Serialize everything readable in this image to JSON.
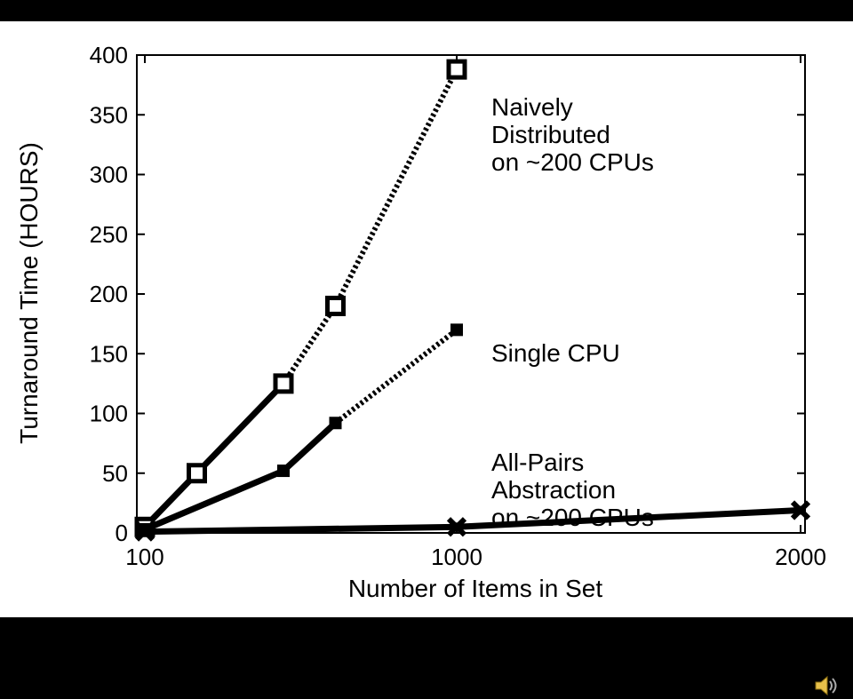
{
  "chart_data": {
    "type": "line",
    "xlabel": "Number of Items in Set",
    "ylabel": "Turnaround Time (HOURS)",
    "x_ticks": [
      "100",
      "1000",
      "2000"
    ],
    "y_ticks": [
      "0",
      "50",
      "100",
      "150",
      "200",
      "250",
      "300",
      "350",
      "400"
    ],
    "xlim": [
      100,
      2000
    ],
    "ylim": [
      0,
      400
    ],
    "grid": false,
    "series": [
      {
        "key": "naive",
        "label_lines": [
          "Naively",
          "Distributed",
          "on ~200 CPUs"
        ],
        "marker": "square-hollow",
        "points": [
          [
            100,
            5
          ],
          [
            250,
            50
          ],
          [
            500,
            125
          ],
          [
            650,
            190
          ],
          [
            1000,
            388
          ]
        ],
        "measured_until_x": 500
      },
      {
        "key": "single",
        "label_lines": [
          "Single CPU"
        ],
        "marker": "square-filled",
        "points": [
          [
            100,
            3
          ],
          [
            500,
            52
          ],
          [
            650,
            92
          ],
          [
            1000,
            170
          ]
        ],
        "measured_until_x": 650
      },
      {
        "key": "allpairs",
        "label_lines": [
          "All-Pairs",
          "Abstraction",
          "on ~200 CPUs"
        ],
        "marker": "x-filled",
        "points": [
          [
            100,
            1
          ],
          [
            1000,
            5
          ],
          [
            2000,
            19
          ]
        ],
        "measured_until_x": 2000
      }
    ]
  },
  "icons": {
    "audio": "speaker-icon"
  }
}
